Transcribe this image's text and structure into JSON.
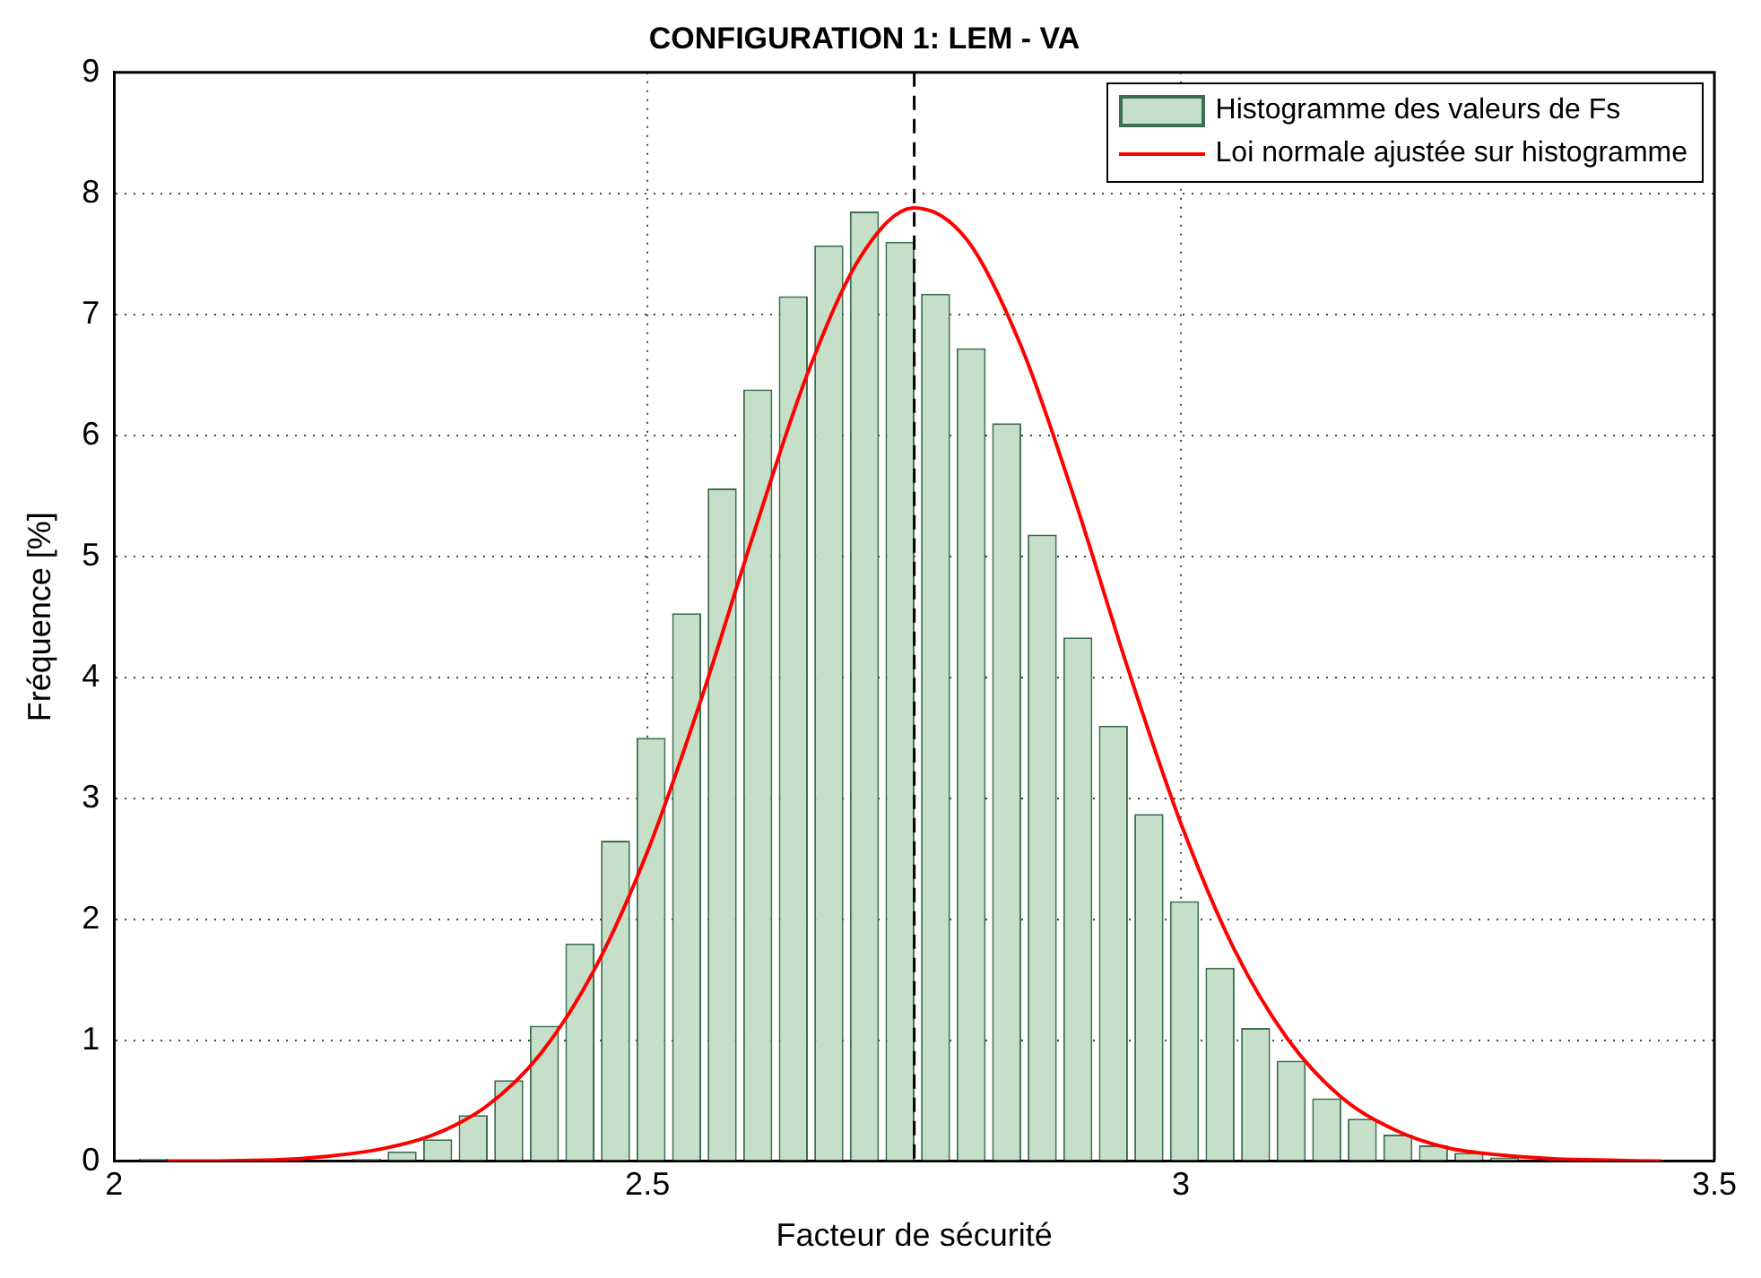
{
  "chart_data": {
    "type": "histogram",
    "title": "CONFIGURATION 1: LEM - VA",
    "xlabel": "Facteur de sécurité",
    "ylabel": "Fréquence [%]",
    "bins": [
      2.02,
      2.0533,
      2.0867,
      2.12,
      2.1533,
      2.1867,
      2.22,
      2.2533,
      2.2867,
      2.32,
      2.3533,
      2.3867,
      2.42,
      2.4533,
      2.4867,
      2.52,
      2.5533,
      2.5867,
      2.62,
      2.6533,
      2.6867,
      2.72,
      2.7533,
      2.7867,
      2.82,
      2.8533,
      2.8867,
      2.92,
      2.9533,
      2.9867,
      3.02,
      3.0533,
      3.0867,
      3.12,
      3.1533,
      3.1867,
      3.22,
      3.2533,
      3.2867,
      3.32,
      3.3533
    ],
    "series": [
      {
        "name": "Histogramme des valeurs de Fs",
        "color": "#c5dfc8",
        "values": [
          0.02,
          0,
          0,
          0,
          0,
          0,
          0.02,
          0.08,
          0.18,
          0.38,
          0.67,
          1.12,
          1.8,
          2.65,
          3.5,
          4.53,
          5.56,
          6.38,
          7.15,
          7.57,
          7.85,
          7.6,
          7.17,
          6.72,
          6.1,
          5.18,
          4.33,
          3.6,
          2.87,
          2.15,
          1.6,
          1.1,
          0.83,
          0.52,
          0.35,
          0.22,
          0.13,
          0.07,
          0.03,
          0.01
        ]
      },
      {
        "name": "Loi normale ajustée sur histogramme",
        "type": "line",
        "color": "#ff0000",
        "x": [
          2.05,
          2.15,
          2.2,
          2.25,
          2.3,
          2.35,
          2.4,
          2.45,
          2.5,
          2.55,
          2.6,
          2.65,
          2.7,
          2.75,
          2.8,
          2.85,
          2.9,
          2.95,
          3.0,
          3.05,
          3.1,
          3.15,
          3.2,
          3.25,
          3.3,
          3.35,
          3.45
        ],
        "values": [
          0,
          0.01,
          0.04,
          0.1,
          0.22,
          0.46,
          0.89,
          1.58,
          2.56,
          3.81,
          5.2,
          6.51,
          7.48,
          7.88,
          7.61,
          6.74,
          5.48,
          4.08,
          2.79,
          1.75,
          1.01,
          0.53,
          0.26,
          0.11,
          0.05,
          0.02,
          0
        ]
      }
    ],
    "ref_lines": [
      {
        "axis": "x",
        "value": 2.75,
        "color": "#000000",
        "line_style": "dashed"
      }
    ],
    "xlim": [
      2,
      3.5
    ],
    "xticks": [
      2,
      2.5,
      3,
      3.5
    ],
    "ylim": [
      0,
      9
    ],
    "yticks": [
      0,
      1,
      2,
      3,
      4,
      5,
      6,
      7,
      8,
      9
    ],
    "grid": true,
    "legend": "top right"
  }
}
